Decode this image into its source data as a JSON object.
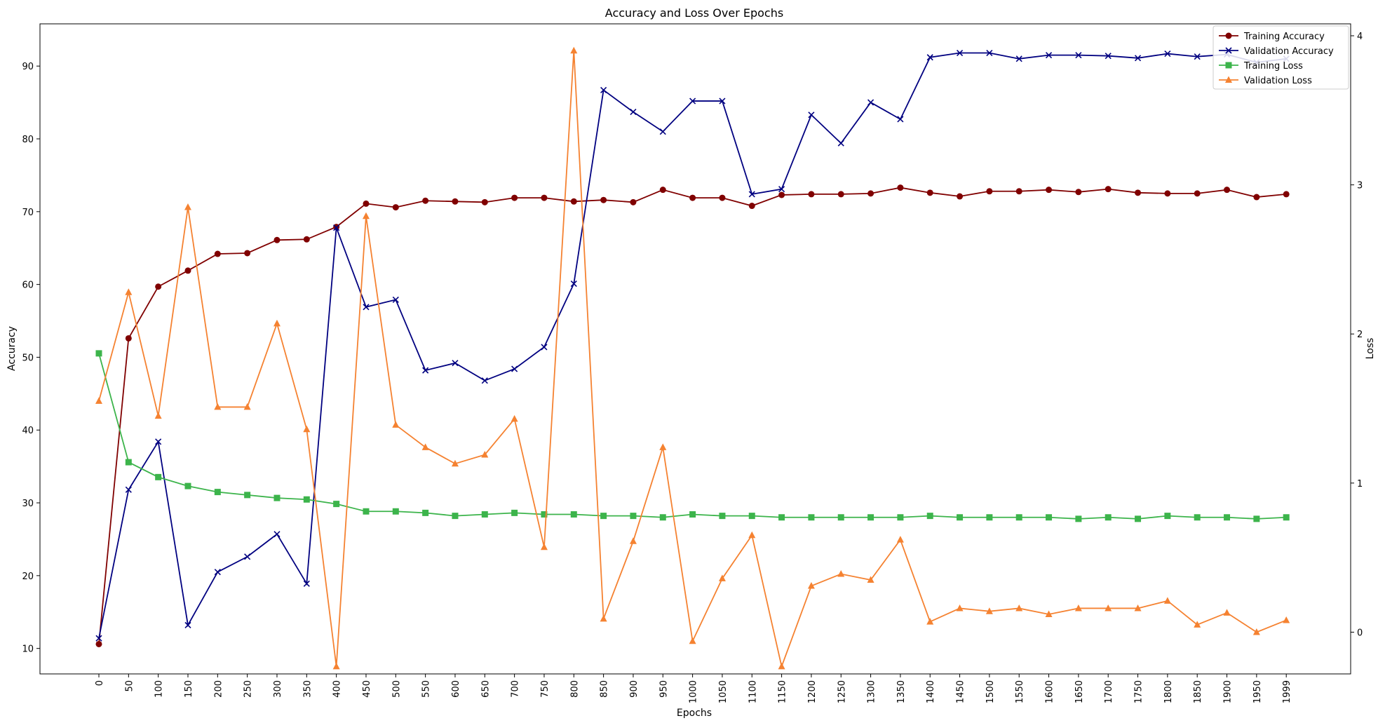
{
  "chart_data": {
    "type": "line",
    "title": "Accuracy and Loss Over Epochs",
    "xlabel": "Epochs",
    "ylabel_left": "Accuracy",
    "ylabel_right": "Loss",
    "x": [
      "0",
      "50",
      "100",
      "150",
      "200",
      "250",
      "300",
      "350",
      "400",
      "450",
      "500",
      "550",
      "600",
      "650",
      "700",
      "750",
      "800",
      "850",
      "900",
      "950",
      "1000",
      "1050",
      "1100",
      "1150",
      "1200",
      "1250",
      "1300",
      "1350",
      "1400",
      "1450",
      "1500",
      "1550",
      "1600",
      "1650",
      "1700",
      "1750",
      "1800",
      "1850",
      "1900",
      "1950",
      "1999"
    ],
    "ylim_left": [
      6.5,
      95.8
    ],
    "ylim_right": [
      -0.28,
      4.08
    ],
    "yticks_left": [
      10,
      20,
      30,
      40,
      50,
      60,
      70,
      80,
      90
    ],
    "yticks_right": [
      0,
      1,
      2,
      3,
      4
    ],
    "grid": false,
    "legend_position": "top-right",
    "series": [
      {
        "name": "Training Accuracy",
        "axis": "left",
        "color": "#800000",
        "marker": "circle",
        "values": [
          10.6,
          52.6,
          59.7,
          61.9,
          64.2,
          64.3,
          66.1,
          66.2,
          67.9,
          71.1,
          70.6,
          71.5,
          71.4,
          71.3,
          71.9,
          71.9,
          71.4,
          71.6,
          71.3,
          73.0,
          71.9,
          71.9,
          70.8,
          72.3,
          72.4,
          72.4,
          72.5,
          73.3,
          72.6,
          72.1,
          72.8,
          72.8,
          73.0,
          72.7,
          73.1,
          72.6,
          72.5,
          72.5,
          73.0,
          72.0,
          72.4
        ]
      },
      {
        "name": "Validation Accuracy",
        "axis": "left",
        "color": "#000080",
        "marker": "x",
        "values": [
          11.4,
          31.8,
          38.4,
          13.2,
          20.5,
          22.6,
          25.7,
          18.9,
          67.8,
          56.9,
          57.9,
          48.2,
          49.2,
          46.8,
          48.4,
          51.4,
          60.1,
          86.7,
          83.7,
          81.0,
          85.2,
          85.2,
          72.4,
          73.1,
          83.3,
          79.4,
          85.0,
          82.7,
          91.2,
          91.8,
          91.8,
          91.0,
          91.5,
          91.5,
          91.4,
          91.1,
          91.7,
          91.3,
          91.6,
          90.5,
          91.0
        ]
      },
      {
        "name": "Training Loss",
        "axis": "right",
        "color": "#3cb44b",
        "marker": "square",
        "values": [
          1.87,
          1.14,
          1.04,
          0.98,
          0.94,
          0.92,
          0.9,
          0.89,
          0.86,
          0.81,
          0.81,
          0.8,
          0.78,
          0.79,
          0.8,
          0.79,
          0.79,
          0.78,
          0.78,
          0.77,
          0.79,
          0.78,
          0.78,
          0.77,
          0.77,
          0.77,
          0.77,
          0.77,
          0.78,
          0.77,
          0.77,
          0.77,
          0.77,
          0.76,
          0.77,
          0.76,
          0.78,
          0.77,
          0.77,
          0.76,
          0.77
        ]
      },
      {
        "name": "Validation Loss",
        "axis": "right",
        "color": "#f58231",
        "marker": "triangle",
        "values": [
          1.55,
          2.28,
          1.45,
          2.85,
          1.51,
          1.51,
          2.07,
          1.36,
          -0.23,
          2.79,
          1.39,
          1.24,
          1.13,
          1.19,
          1.43,
          0.57,
          3.9,
          0.09,
          0.61,
          1.24,
          -0.06,
          0.36,
          0.65,
          -0.23,
          0.31,
          0.39,
          0.35,
          0.62,
          0.07,
          0.16,
          0.14,
          0.16,
          0.12,
          0.16,
          0.16,
          0.16,
          0.21,
          0.05,
          0.13,
          0.0,
          0.08
        ]
      }
    ]
  }
}
